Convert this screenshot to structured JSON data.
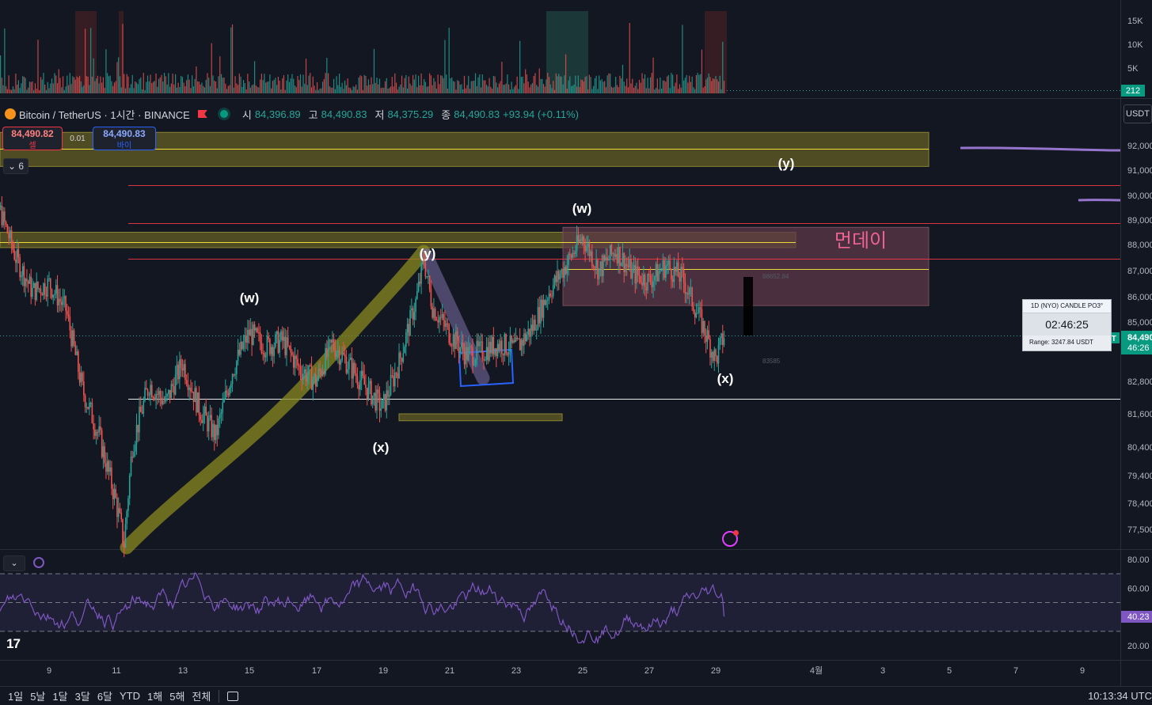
{
  "legend": {
    "symbol": "Bitcoin / TetherUS · 1시간 · BINANCE",
    "o_label": "시",
    "o": "84,396.89",
    "h_label": "고",
    "h": "84,490.83",
    "l_label": "저",
    "l": "84,375.29",
    "c_label": "종",
    "c": "84,490.83",
    "change": "+93.94 (+0.11%)"
  },
  "trade": {
    "sell_price": "84,490.82",
    "sell_label": "셀",
    "spread": "0.01",
    "buy_price": "84,490.83",
    "buy_label": "바이"
  },
  "indicator_count": "6",
  "currency_button": "USDT",
  "countdown_panel": {
    "title": "1D (NYO) CANDLE PO3°",
    "time": "02:46:25",
    "range": "Range: 3247.84 USDT"
  },
  "price_tag": {
    "symbol": "BTCUSDT",
    "price": "84,490",
    "countdown": "46:26"
  },
  "volume_tag": "212",
  "rsi_tag": "40.23",
  "annotations": {
    "w1": "(w)",
    "y1": "(y)",
    "x1": "(x)",
    "w2": "(w)",
    "x2": "(x)",
    "y2": "(y)",
    "korean": "먼데이",
    "small_hi": "88652.84",
    "small_lo": "83585"
  },
  "bottom_bar": {
    "timeframes": [
      "1일",
      "5날",
      "1달",
      "3달",
      "6달",
      "YTD",
      "1해",
      "5해",
      "전체"
    ],
    "clock": "10:13:34 UTC"
  },
  "colors": {
    "background": "#131722",
    "up": "#26a69a",
    "down": "#ef5350",
    "rsi": "#7e57c2",
    "zone_yellow": "#5a5522",
    "zone_pink": "#5e3a48",
    "trend_band": "#8a8a1f",
    "pink_text": "#f06292"
  },
  "chart_data": [
    {
      "type": "candlestick",
      "title": "Bitcoin / TetherUS · 1시간 · BINANCE",
      "x_tick_labels": [
        "9",
        "11",
        "13",
        "15",
        "17",
        "19",
        "21",
        "23",
        "25",
        "27",
        "29",
        "4월",
        "3",
        "5",
        "7",
        "9"
      ],
      "y_tick_labels": [
        "92,000",
        "91,000",
        "90,000",
        "89,000",
        "88,000",
        "87,000",
        "86,000",
        "85,000",
        "82,800",
        "81,600",
        "80,400",
        "79,400",
        "78,400",
        "77,500"
      ],
      "y_scale": "log",
      "close_path": [
        [
          "Mar 7",
          88000
        ],
        [
          "Mar 7 12h",
          89500
        ],
        [
          "Mar 8",
          87500
        ],
        [
          "Mar 8 12h",
          86200
        ],
        [
          "Mar 9",
          86500
        ],
        [
          "Mar 9 12h",
          85500
        ],
        [
          "Mar 10",
          82500
        ],
        [
          "Mar 10 12h",
          80800
        ],
        [
          "Mar 11",
          78500
        ],
        [
          "Mar 11 6h",
          77000
        ],
        [
          "Mar 11 12h",
          80500
        ],
        [
          "Mar 12",
          82700
        ],
        [
          "Mar 12 12h",
          82000
        ],
        [
          "Mar 13",
          83500
        ],
        [
          "Mar 13 12h",
          81800
        ],
        [
          "Mar 14",
          80800
        ],
        [
          "Mar 14 12h",
          83200
        ],
        [
          "Mar 15",
          84600
        ],
        [
          "Mar 15 12h",
          84100
        ],
        [
          "Mar 16",
          84300
        ],
        [
          "Mar 16 12h",
          83300
        ],
        [
          "Mar 17",
          82800
        ],
        [
          "Mar 17 12h",
          84200
        ],
        [
          "Mar 18",
          83400
        ],
        [
          "Mar 18 12h",
          82600
        ],
        [
          "Mar 19",
          81800
        ],
        [
          "Mar 19 12h",
          83500
        ],
        [
          "Mar 20",
          85800
        ],
        [
          "Mar 20 6h",
          87400
        ],
        [
          "Mar 20 12h",
          85600
        ],
        [
          "Mar 21",
          84600
        ],
        [
          "Mar 21 12h",
          83800
        ],
        [
          "Mar 22",
          83900
        ],
        [
          "Mar 22 12h",
          84200
        ],
        [
          "Mar 23",
          84000
        ],
        [
          "Mar 23 12h",
          84800
        ],
        [
          "Mar 24",
          86200
        ],
        [
          "Mar 24 12h",
          87200
        ],
        [
          "Mar 25",
          88300
        ],
        [
          "Mar 25 12h",
          87000
        ],
        [
          "Mar 26",
          87800
        ],
        [
          "Mar 26 12h",
          86900
        ],
        [
          "Mar 27",
          86600
        ],
        [
          "Mar 27 12h",
          87200
        ],
        [
          "Mar 28",
          86700
        ],
        [
          "Mar 28 12h",
          85200
        ],
        [
          "Mar 29",
          83600
        ],
        [
          "Mar 29 6h",
          84491
        ]
      ],
      "horizontal_lines": [
        {
          "price": 91860,
          "color": "#ffeb3b"
        },
        {
          "price": 90400,
          "color": "#f23645"
        },
        {
          "price": 88880,
          "color": "#f23645"
        },
        {
          "price": 88100,
          "color": "#ffeb3b"
        },
        {
          "price": 87450,
          "color": "#f23645"
        },
        {
          "price": 87070,
          "color": "#ffeb3b"
        },
        {
          "price": 82150,
          "color": "#ffffff"
        }
      ],
      "zones": [
        {
          "from": 91150,
          "to": 92540,
          "color": "yellow"
        },
        {
          "from": 87880,
          "to": 88500,
          "color": "yellow"
        },
        {
          "from": 81350,
          "to": 81600,
          "color": "yellow"
        },
        {
          "from": 85650,
          "to": 88700,
          "color": "pink"
        }
      ],
      "last_price": 84490.83
    },
    {
      "type": "bar",
      "title": "Volume",
      "y_tick_labels": [
        "15K",
        "10K",
        "5K"
      ],
      "last_value": 212
    },
    {
      "type": "line",
      "title": "RSI",
      "y_tick_labels": [
        "80.00",
        "60.00",
        "40.00",
        "20.00"
      ],
      "bands": [
        70,
        50,
        30
      ],
      "last_value": 40.23
    }
  ]
}
